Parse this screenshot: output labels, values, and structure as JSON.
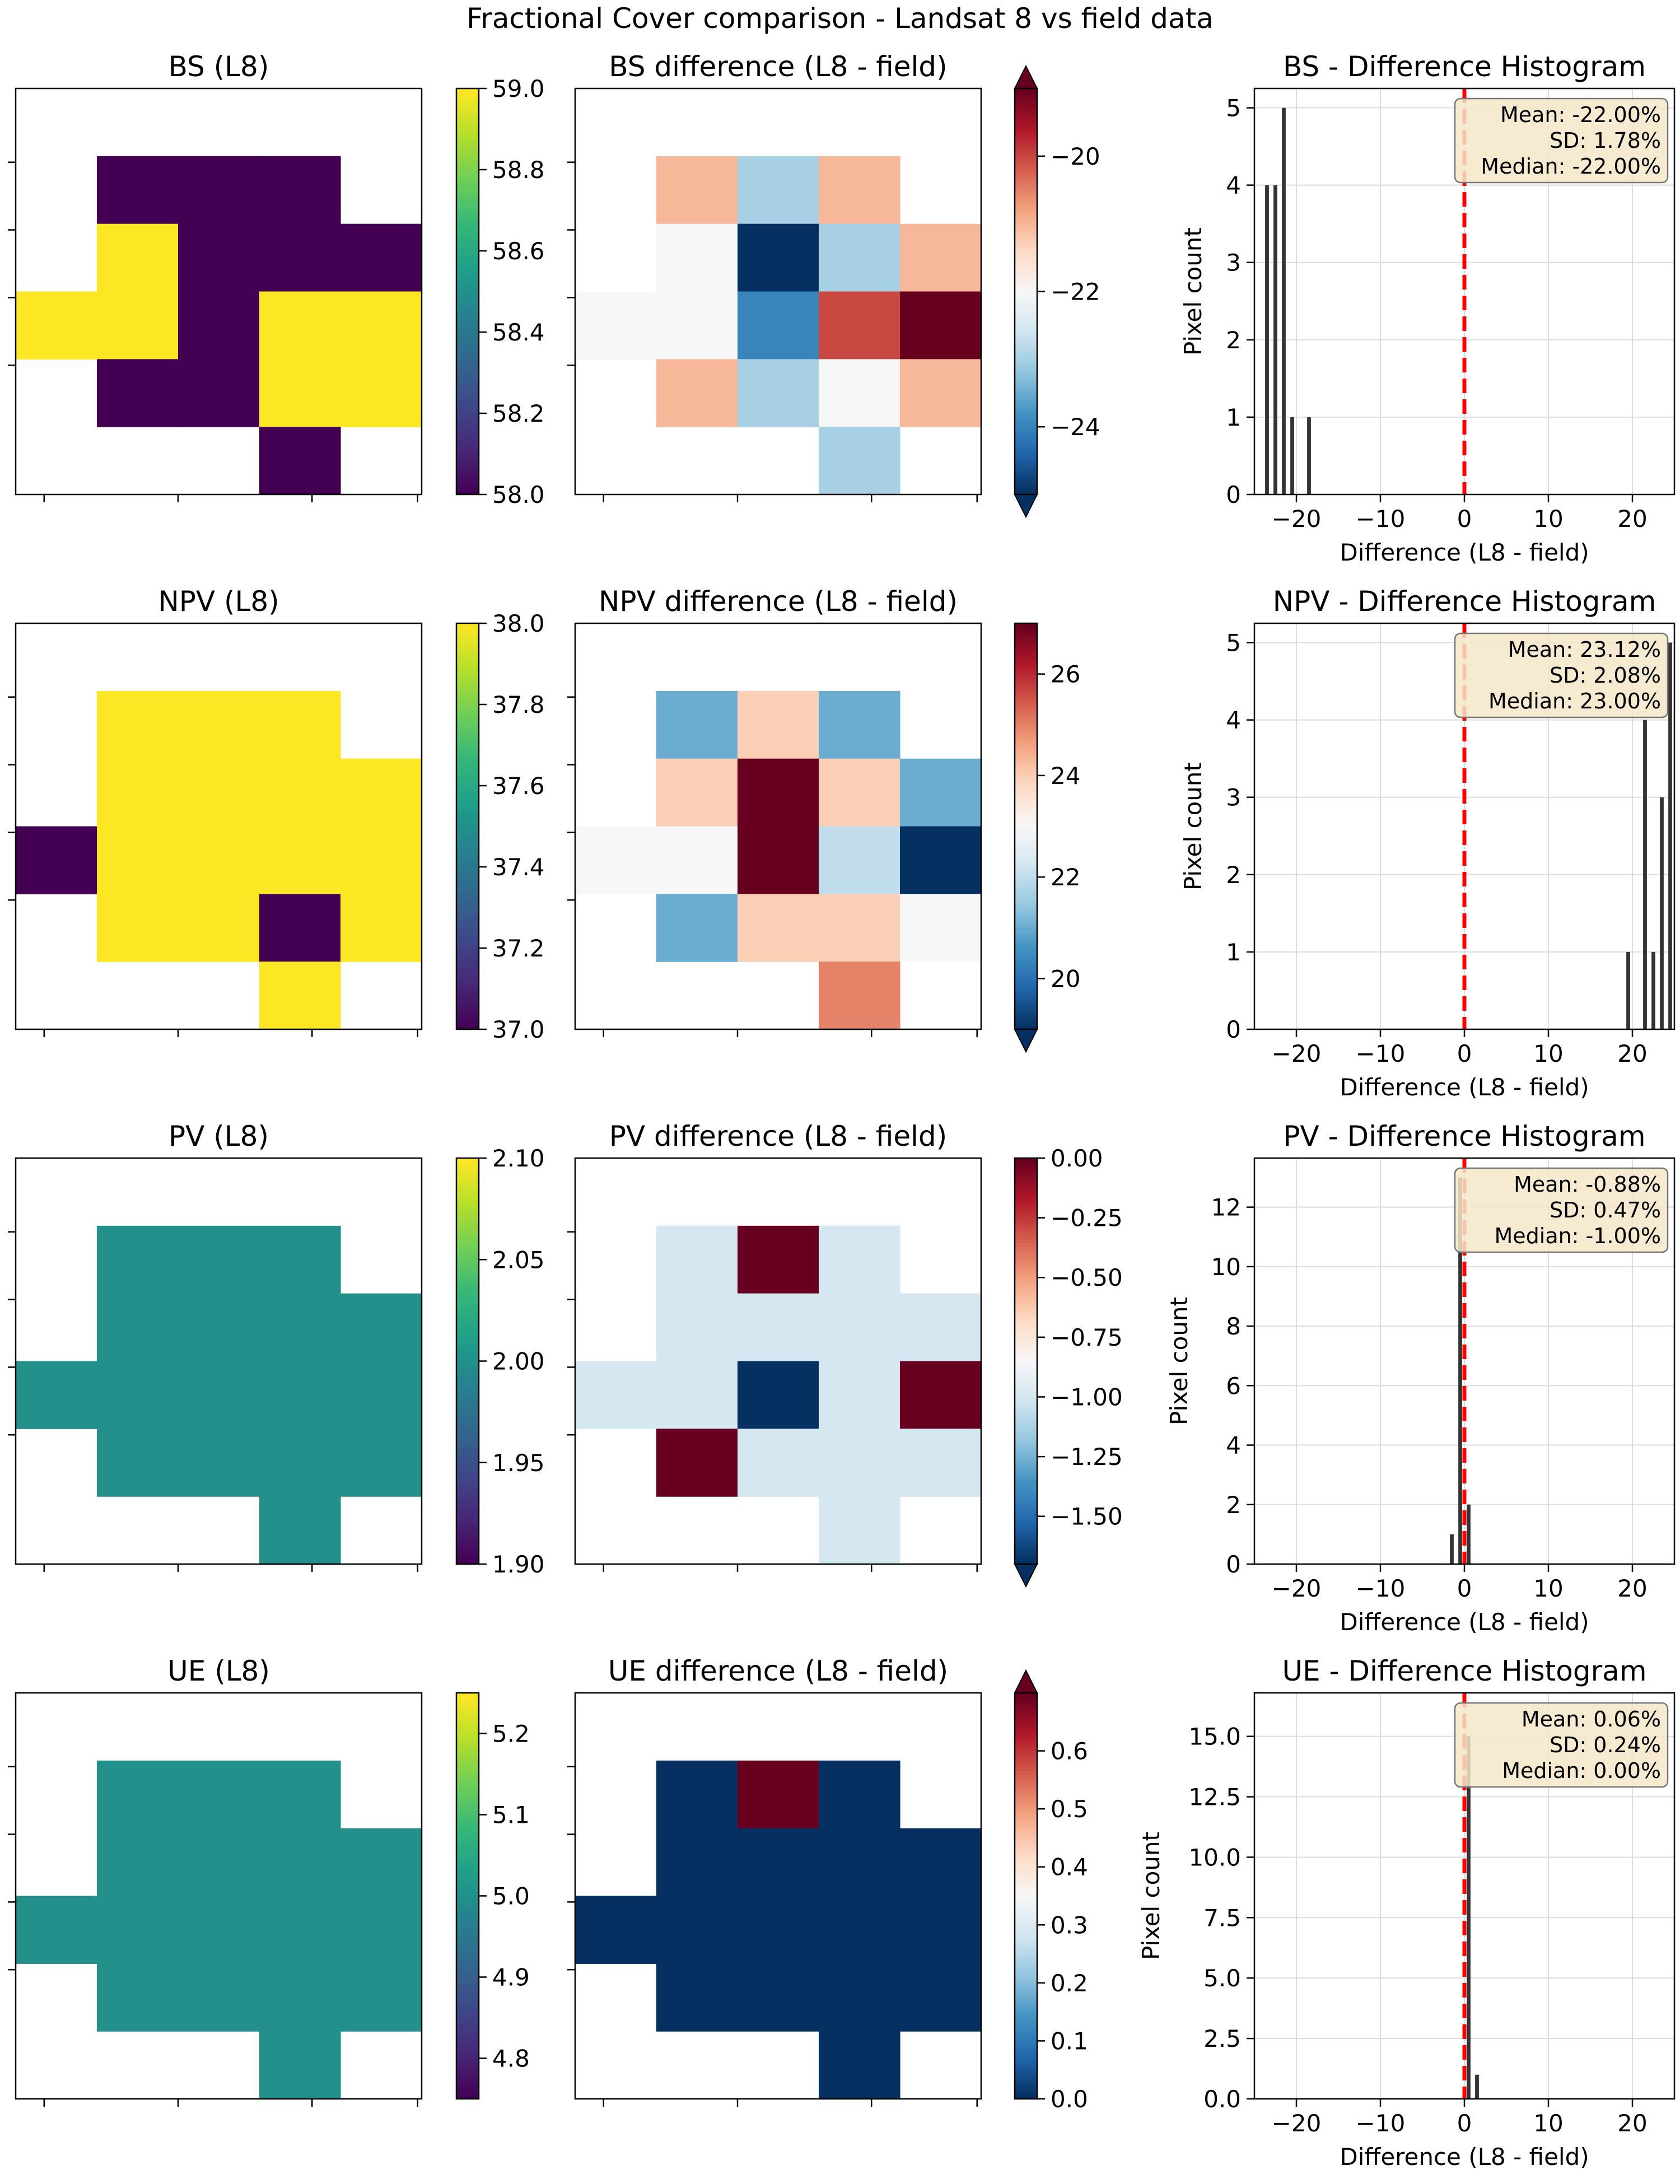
{
  "title": "Fractional Cover comparison - Landsat 8 vs field data",
  "colors": {
    "viridis": [
      "#440154",
      "#482878",
      "#3e4989",
      "#31688e",
      "#26828e",
      "#1f9e89",
      "#35b779",
      "#6ece58",
      "#b5de2b",
      "#fde725"
    ],
    "rdbu_r": [
      "#053061",
      "#2166ac",
      "#4393c3",
      "#92c5de",
      "#d1e5f0",
      "#f7f7f7",
      "#fddbc7",
      "#f4a582",
      "#d6604d",
      "#b2182b",
      "#67001f"
    ],
    "hist_bar": "#333333",
    "zero_line": "#ff0000",
    "stats_box_fill": "#f5e6c8",
    "grid": "#dddddd"
  },
  "chart_data": [
    {
      "name": "BS",
      "type": "heatmap",
      "map": {
        "title": "BS (L8)",
        "colormap": "viridis",
        "vmin": 58.0,
        "vmax": 59.0,
        "colorbar_ticks": [
          "58.0",
          "58.2",
          "58.4",
          "58.6",
          "58.8",
          "59.0"
        ],
        "grid": [
          [
            null,
            null,
            null,
            null,
            null
          ],
          [
            null,
            58,
            58,
            58,
            null
          ],
          [
            null,
            59,
            58,
            58,
            58
          ],
          [
            59,
            59,
            58,
            59,
            59
          ],
          [
            null,
            58,
            58,
            59,
            59
          ],
          [
            null,
            null,
            null,
            58,
            null
          ]
        ]
      },
      "diff": {
        "title": "BS difference (L8 - field)",
        "colormap": "RdBu_r",
        "vmin": -25.0,
        "vmax": -19.0,
        "extend": "both",
        "colorbar_ticks": [
          "−24",
          "−22",
          "−20"
        ],
        "colorbar_tick_values": [
          -24,
          -22,
          -20
        ],
        "grid": [
          [
            null,
            null,
            null,
            null,
            null
          ],
          [
            null,
            -21,
            -23,
            -21,
            null
          ],
          [
            null,
            -22,
            -25,
            -23,
            -21
          ],
          [
            -22,
            -22,
            -24,
            -20,
            -19
          ],
          [
            null,
            -21,
            -23,
            -22,
            -21
          ],
          [
            null,
            null,
            null,
            -23,
            null
          ]
        ]
      },
      "hist": {
        "title": "BS - Difference Histogram",
        "xlabel": "Difference (L8 - field)",
        "ylabel": "Pixel count",
        "xlim": [
          -25,
          25
        ],
        "ylim": [
          0,
          5.25
        ],
        "xticks": [
          -20,
          -10,
          0,
          10,
          20
        ],
        "xtick_labels": [
          "−20",
          "−10",
          "0",
          "10",
          "20"
        ],
        "yticks": [
          0,
          1,
          2,
          3,
          4,
          5
        ],
        "ytick_labels": [
          "0",
          "1",
          "2",
          "3",
          "4",
          "5"
        ],
        "bars": [
          {
            "x": -24,
            "count": 4
          },
          {
            "x": -23,
            "count": 4
          },
          {
            "x": -22,
            "count": 5
          },
          {
            "x": -21,
            "count": 1
          },
          {
            "x": -19,
            "count": 1
          }
        ],
        "stats": [
          "Mean: -22.00%",
          "SD: 1.78%",
          "Median: -22.00%"
        ]
      }
    },
    {
      "name": "NPV",
      "type": "heatmap",
      "map": {
        "title": "NPV (L8)",
        "colormap": "viridis",
        "vmin": 37.0,
        "vmax": 38.0,
        "colorbar_ticks": [
          "37.0",
          "37.2",
          "37.4",
          "37.6",
          "37.8",
          "38.0"
        ],
        "grid": [
          [
            null,
            null,
            null,
            null,
            null
          ],
          [
            null,
            38,
            38,
            38,
            null
          ],
          [
            null,
            38,
            38,
            38,
            38
          ],
          [
            37,
            38,
            38,
            38,
            38
          ],
          [
            null,
            38,
            38,
            37,
            38
          ],
          [
            null,
            null,
            null,
            38,
            null
          ]
        ]
      },
      "diff": {
        "title": "NPV difference (L8 - field)",
        "colormap": "RdBu_r",
        "vmin": 19.0,
        "vmax": 27.0,
        "extend": "min",
        "colorbar_ticks": [
          "20",
          "22",
          "24",
          "26"
        ],
        "colorbar_tick_values": [
          20,
          22,
          24,
          26
        ],
        "grid": [
          [
            null,
            null,
            null,
            null,
            null
          ],
          [
            null,
            21,
            24,
            21,
            null
          ],
          [
            null,
            24,
            27,
            24,
            21
          ],
          [
            23,
            23,
            27,
            22,
            19
          ],
          [
            null,
            21,
            24,
            24,
            23
          ],
          [
            null,
            null,
            null,
            25,
            null
          ]
        ]
      },
      "hist": {
        "title": "NPV - Difference Histogram",
        "xlabel": "Difference (L8 - field)",
        "ylabel": "Pixel count",
        "xlim": [
          -25,
          25
        ],
        "ylim": [
          0,
          5.25
        ],
        "xticks": [
          -20,
          -10,
          0,
          10,
          20
        ],
        "xtick_labels": [
          "−20",
          "−10",
          "0",
          "10",
          "20"
        ],
        "yticks": [
          0,
          1,
          2,
          3,
          4,
          5
        ],
        "ytick_labels": [
          "0",
          "1",
          "2",
          "3",
          "4",
          "5"
        ],
        "bars": [
          {
            "x": 19,
            "count": 1
          },
          {
            "x": 21,
            "count": 4
          },
          {
            "x": 22,
            "count": 1
          },
          {
            "x": 23,
            "count": 3
          },
          {
            "x": 24,
            "count": 5
          }
        ],
        "stats": [
          "Mean: 23.12%",
          "SD: 2.08%",
          "Median: 23.00%"
        ]
      }
    },
    {
      "name": "PV",
      "type": "heatmap",
      "map": {
        "title": "PV (L8)",
        "colormap": "viridis",
        "vmin": 1.9,
        "vmax": 2.1,
        "colorbar_ticks": [
          "1.90",
          "1.95",
          "2.00",
          "2.05",
          "2.10"
        ],
        "grid": [
          [
            null,
            null,
            null,
            null,
            null
          ],
          [
            null,
            2,
            2,
            2,
            null
          ],
          [
            null,
            2,
            2,
            2,
            2
          ],
          [
            2,
            2,
            2,
            2,
            2
          ],
          [
            null,
            2,
            2,
            2,
            2
          ],
          [
            null,
            null,
            null,
            2,
            null
          ]
        ]
      },
      "diff": {
        "title": "PV difference (L8 - field)",
        "colormap": "RdBu_r",
        "vmin": -1.7,
        "vmax": 0.0,
        "extend": "min",
        "colorbar_ticks": [
          "0.00",
          "−0.25",
          "−0.50",
          "−0.75",
          "−1.00",
          "−1.25",
          "−1.50"
        ],
        "colorbar_tick_values": [
          0,
          -0.25,
          -0.5,
          -0.75,
          -1.0,
          -1.25,
          -1.5
        ],
        "grid": [
          [
            null,
            null,
            null,
            null,
            null
          ],
          [
            null,
            -1,
            0,
            -1,
            null
          ],
          [
            null,
            -1,
            -1,
            -1,
            -1
          ],
          [
            -1,
            -1,
            -2,
            -1,
            0
          ],
          [
            null,
            0,
            -1,
            -1,
            -1
          ],
          [
            null,
            null,
            null,
            -1,
            null
          ]
        ]
      },
      "hist": {
        "title": "PV - Difference Histogram",
        "xlabel": "Difference (L8 - field)",
        "ylabel": "Pixel count",
        "xlim": [
          -25,
          25
        ],
        "ylim": [
          0,
          13.65
        ],
        "xticks": [
          -20,
          -10,
          0,
          10,
          20
        ],
        "xtick_labels": [
          "−20",
          "−10",
          "0",
          "10",
          "20"
        ],
        "yticks": [
          0,
          2,
          4,
          6,
          8,
          10,
          12
        ],
        "ytick_labels": [
          "0",
          "2",
          "4",
          "6",
          "8",
          "10",
          "12"
        ],
        "bars": [
          {
            "x": -2,
            "count": 1
          },
          {
            "x": -1,
            "count": 13
          },
          {
            "x": 0,
            "count": 2
          }
        ],
        "stats": [
          "Mean: -0.88%",
          "SD: 0.47%",
          "Median: -1.00%"
        ]
      }
    },
    {
      "name": "UE",
      "type": "heatmap",
      "map": {
        "title": "UE (L8)",
        "colormap": "viridis",
        "vmin": 4.75,
        "vmax": 5.25,
        "colorbar_ticks": [
          "4.8",
          "4.9",
          "5.0",
          "5.1",
          "5.2"
        ],
        "colorbar_tick_values": [
          4.8,
          4.9,
          5.0,
          5.1,
          5.2
        ],
        "grid": [
          [
            null,
            null,
            null,
            null,
            null
          ],
          [
            null,
            5,
            5,
            5,
            null
          ],
          [
            null,
            5,
            5,
            5,
            5
          ],
          [
            5,
            5,
            5,
            5,
            5
          ],
          [
            null,
            5,
            5,
            5,
            5
          ],
          [
            null,
            null,
            null,
            5,
            null
          ]
        ]
      },
      "diff": {
        "title": "UE difference (L8 - field)",
        "colormap": "RdBu_r",
        "vmin": 0.0,
        "vmax": 0.7,
        "extend": "max",
        "colorbar_ticks": [
          "0.0",
          "0.1",
          "0.2",
          "0.3",
          "0.4",
          "0.5",
          "0.6"
        ],
        "colorbar_tick_values": [
          0,
          0.1,
          0.2,
          0.3,
          0.4,
          0.5,
          0.6
        ],
        "grid": [
          [
            null,
            null,
            null,
            null,
            null
          ],
          [
            null,
            0,
            1,
            0,
            null
          ],
          [
            null,
            0,
            0,
            0,
            0
          ],
          [
            0,
            0,
            0,
            0,
            0
          ],
          [
            null,
            0,
            0,
            0,
            0
          ],
          [
            null,
            null,
            null,
            0,
            null
          ]
        ]
      },
      "hist": {
        "title": "UE - Difference Histogram",
        "xlabel": "Difference (L8 - field)",
        "ylabel": "Pixel count",
        "xlim": [
          -25,
          25
        ],
        "ylim": [
          0,
          16.8
        ],
        "xticks": [
          -20,
          -10,
          0,
          10,
          20
        ],
        "xtick_labels": [
          "−20",
          "−10",
          "0",
          "10",
          "20"
        ],
        "yticks": [
          0,
          2.5,
          5,
          7.5,
          10,
          12.5,
          15
        ],
        "ytick_labels": [
          "0.0",
          "2.5",
          "5.0",
          "7.5",
          "10.0",
          "12.5",
          "15.0"
        ],
        "bars": [
          {
            "x": 0,
            "count": 15
          },
          {
            "x": 1,
            "count": 1
          }
        ],
        "stats": [
          "Mean: 0.06%",
          "SD: 0.24%",
          "Median: 0.00%"
        ]
      }
    }
  ]
}
